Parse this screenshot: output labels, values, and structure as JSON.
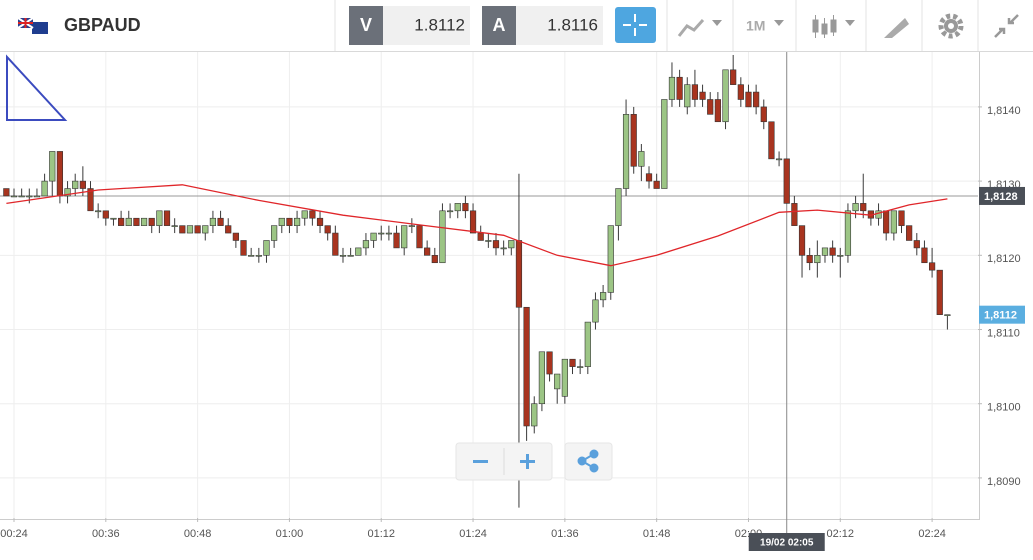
{
  "header": {
    "symbol": "GBPAUD",
    "bid_label": "V",
    "bid": "1.8112",
    "ask_label": "A",
    "ask": "1.8116",
    "timeframe": "1M"
  },
  "chart_data": {
    "type": "candlestick",
    "x": [
      23,
      24,
      25,
      26,
      27,
      28,
      29,
      30,
      31,
      32,
      33,
      34,
      35,
      36,
      37,
      38,
      39,
      40,
      41,
      42,
      43,
      44,
      45,
      46,
      47,
      48,
      49,
      50,
      51,
      52,
      53,
      54,
      55,
      56,
      57,
      58,
      59,
      60,
      61,
      62,
      63,
      64,
      65,
      66,
      67,
      68,
      69,
      70,
      71,
      72,
      73,
      74,
      75,
      76,
      77,
      78,
      79,
      80,
      81,
      82,
      83,
      84,
      85,
      86,
      87,
      88,
      89,
      90,
      91,
      92,
      93,
      94,
      95,
      96,
      97,
      98,
      99,
      100,
      101,
      102,
      103,
      104,
      105,
      106,
      107,
      108,
      109,
      110,
      111,
      112,
      113,
      114,
      115,
      116,
      117,
      118,
      119,
      120,
      121,
      122,
      123,
      124,
      125,
      126,
      127,
      128,
      129,
      130,
      131,
      132,
      133,
      134,
      135,
      136,
      137,
      138,
      139,
      140,
      141,
      142,
      143,
      144,
      145,
      146
    ],
    "candles": [
      [
        1.8129,
        1.8129,
        1.8128,
        1.8128
      ],
      [
        1.8128,
        1.8129,
        1.8128,
        1.8128
      ],
      [
        1.8128,
        1.8129,
        1.8128,
        1.8128
      ],
      [
        1.8128,
        1.8129,
        1.8127,
        1.8128
      ],
      [
        1.8128,
        1.8129,
        1.8128,
        1.8128
      ],
      [
        1.8128,
        1.8131,
        1.8128,
        1.813
      ],
      [
        1.813,
        1.8134,
        1.8128,
        1.8134
      ],
      [
        1.8134,
        1.8134,
        1.8127,
        1.8128
      ],
      [
        1.8128,
        1.813,
        1.8127,
        1.8129
      ],
      [
        1.8129,
        1.8131,
        1.8128,
        1.813
      ],
      [
        1.813,
        1.8132,
        1.8128,
        1.8129
      ],
      [
        1.8129,
        1.813,
        1.8126,
        1.8126
      ],
      [
        1.8126,
        1.8127,
        1.8125,
        1.8126
      ],
      [
        1.8126,
        1.8126,
        1.8124,
        1.8125
      ],
      [
        1.8125,
        1.8125,
        1.8124,
        1.8125
      ],
      [
        1.8125,
        1.8126,
        1.8124,
        1.8124
      ],
      [
        1.8124,
        1.8126,
        1.8124,
        1.8125
      ],
      [
        1.8125,
        1.8125,
        1.8124,
        1.8124
      ],
      [
        1.8124,
        1.8125,
        1.8124,
        1.8125
      ],
      [
        1.8125,
        1.8125,
        1.8123,
        1.8124
      ],
      [
        1.8124,
        1.8126,
        1.8123,
        1.8126
      ],
      [
        1.8126,
        1.8126,
        1.8124,
        1.8124
      ],
      [
        1.8124,
        1.8125,
        1.8123,
        1.8124
      ],
      [
        1.8124,
        1.8124,
        1.8123,
        1.8123
      ],
      [
        1.8123,
        1.8124,
        1.8123,
        1.8124
      ],
      [
        1.8124,
        1.8124,
        1.8123,
        1.8123
      ],
      [
        1.8123,
        1.8124,
        1.8122,
        1.8124
      ],
      [
        1.8124,
        1.8126,
        1.8123,
        1.8125
      ],
      [
        1.8125,
        1.8126,
        1.8124,
        1.8124
      ],
      [
        1.8124,
        1.8125,
        1.8123,
        1.8123
      ],
      [
        1.8123,
        1.8123,
        1.8121,
        1.8122
      ],
      [
        1.8122,
        1.8122,
        1.812,
        1.812
      ],
      [
        1.812,
        1.8121,
        1.812,
        1.812
      ],
      [
        1.812,
        1.8121,
        1.8119,
        1.812
      ],
      [
        1.812,
        1.8122,
        1.8119,
        1.8122
      ],
      [
        1.8122,
        1.8124,
        1.8121,
        1.8124
      ],
      [
        1.8124,
        1.8125,
        1.8123,
        1.8125
      ],
      [
        1.8125,
        1.8125,
        1.8123,
        1.8124
      ],
      [
        1.8124,
        1.8126,
        1.8123,
        1.8125
      ],
      [
        1.8125,
        1.8126,
        1.8124,
        1.8126
      ],
      [
        1.8126,
        1.8126,
        1.8124,
        1.8125
      ],
      [
        1.8125,
        1.8126,
        1.8123,
        1.8124
      ],
      [
        1.8124,
        1.8124,
        1.8122,
        1.8123
      ],
      [
        1.8123,
        1.8124,
        1.812,
        1.812
      ],
      [
        1.812,
        1.8121,
        1.8119,
        1.812
      ],
      [
        1.812,
        1.8121,
        1.812,
        1.812
      ],
      [
        1.812,
        1.8121,
        1.812,
        1.8121
      ],
      [
        1.8121,
        1.8123,
        1.812,
        1.8122
      ],
      [
        1.8122,
        1.8123,
        1.8121,
        1.8123
      ],
      [
        1.8123,
        1.8124,
        1.8122,
        1.8123
      ],
      [
        1.8123,
        1.8124,
        1.8122,
        1.8123
      ],
      [
        1.8123,
        1.8124,
        1.8121,
        1.8121
      ],
      [
        1.8121,
        1.8124,
        1.812,
        1.8124
      ],
      [
        1.8124,
        1.8125,
        1.8123,
        1.8124
      ],
      [
        1.8124,
        1.8124,
        1.8121,
        1.8121
      ],
      [
        1.8121,
        1.8122,
        1.812,
        1.812
      ],
      [
        1.812,
        1.8121,
        1.8119,
        1.8119
      ],
      [
        1.8119,
        1.8127,
        1.8119,
        1.8126
      ],
      [
        1.8126,
        1.8127,
        1.8125,
        1.8126
      ],
      [
        1.8126,
        1.8127,
        1.8125,
        1.8127
      ],
      [
        1.8127,
        1.8128,
        1.8125,
        1.8126
      ],
      [
        1.8126,
        1.8127,
        1.8123,
        1.8123
      ],
      [
        1.8123,
        1.8124,
        1.8122,
        1.8122
      ],
      [
        1.8122,
        1.8123,
        1.8121,
        1.8122
      ],
      [
        1.8122,
        1.8123,
        1.812,
        1.8121
      ],
      [
        1.8121,
        1.8122,
        1.812,
        1.8121
      ],
      [
        1.8121,
        1.8122,
        1.812,
        1.8122
      ],
      [
        1.8122,
        1.8131,
        1.8086,
        1.8113
      ],
      [
        1.8113,
        1.8113,
        1.8095,
        1.8097
      ],
      [
        1.8097,
        1.8101,
        1.8096,
        1.81
      ],
      [
        1.81,
        1.8107,
        1.8099,
        1.8107
      ],
      [
        1.8107,
        1.8107,
        1.8103,
        1.8104
      ],
      [
        1.8102,
        1.8104,
        1.81,
        1.8104
      ],
      [
        1.8101,
        1.8106,
        1.81,
        1.8106
      ],
      [
        1.8106,
        1.8106,
        1.8104,
        1.8105
      ],
      [
        1.8105,
        1.8106,
        1.8104,
        1.8105
      ],
      [
        1.8105,
        1.8111,
        1.8104,
        1.8111
      ],
      [
        1.8111,
        1.8115,
        1.811,
        1.8114
      ],
      [
        1.8114,
        1.8116,
        1.8113,
        1.8115
      ],
      [
        1.8115,
        1.8124,
        1.8114,
        1.8124
      ],
      [
        1.8124,
        1.8129,
        1.8122,
        1.8129
      ],
      [
        1.8129,
        1.8141,
        1.8128,
        1.8139
      ],
      [
        1.8139,
        1.814,
        1.8131,
        1.8132
      ],
      [
        1.8132,
        1.8135,
        1.813,
        1.8134
      ],
      [
        1.8131,
        1.8132,
        1.8129,
        1.813
      ],
      [
        1.813,
        1.8131,
        1.8129,
        1.8129
      ],
      [
        1.8129,
        1.8141,
        1.8129,
        1.8141
      ],
      [
        1.8141,
        1.8146,
        1.814,
        1.8144
      ],
      [
        1.8144,
        1.8145,
        1.814,
        1.8141
      ],
      [
        1.814,
        1.8144,
        1.8139,
        1.8143
      ],
      [
        1.8143,
        1.8145,
        1.814,
        1.8141
      ],
      [
        1.8142,
        1.8143,
        1.814,
        1.8141
      ],
      [
        1.8141,
        1.8142,
        1.8139,
        1.8139
      ],
      [
        1.8141,
        1.8142,
        1.8138,
        1.8138
      ],
      [
        1.8138,
        1.8145,
        1.8137,
        1.8145
      ],
      [
        1.8145,
        1.8147,
        1.8143,
        1.8143
      ],
      [
        1.8143,
        1.8144,
        1.814,
        1.8141
      ],
      [
        1.8142,
        1.8143,
        1.814,
        1.814
      ],
      [
        1.8142,
        1.8143,
        1.8139,
        1.814
      ],
      [
        1.814,
        1.8141,
        1.8137,
        1.8138
      ],
      [
        1.8138,
        1.8138,
        1.8133,
        1.8133
      ],
      [
        1.8133,
        1.8134,
        1.8132,
        1.8133
      ],
      [
        1.8133,
        1.8133,
        1.8127,
        1.8127
      ],
      [
        1.8127,
        1.8128,
        1.8124,
        1.8124
      ],
      [
        1.8124,
        1.8124,
        1.8117,
        1.812
      ],
      [
        1.812,
        1.8121,
        1.8118,
        1.8119
      ],
      [
        1.8119,
        1.8122,
        1.8117,
        1.812
      ],
      [
        1.812,
        1.8121,
        1.8119,
        1.8121
      ],
      [
        1.8121,
        1.8122,
        1.8119,
        1.812
      ],
      [
        1.812,
        1.8121,
        1.8117,
        1.812
      ],
      [
        1.812,
        1.8127,
        1.8119,
        1.8126
      ],
      [
        1.8126,
        1.8128,
        1.8125,
        1.8127
      ],
      [
        1.8127,
        1.8131,
        1.8125,
        1.8126
      ],
      [
        1.8126,
        1.8126,
        1.8124,
        1.8125
      ],
      [
        1.8125,
        1.8127,
        1.8124,
        1.8126
      ],
      [
        1.8126,
        1.8126,
        1.8122,
        1.8123
      ],
      [
        1.8123,
        1.8126,
        1.8122,
        1.8126
      ],
      [
        1.8126,
        1.8126,
        1.8123,
        1.8124
      ],
      [
        1.8124,
        1.8124,
        1.8122,
        1.8122
      ],
      [
        1.8122,
        1.8123,
        1.812,
        1.8121
      ],
      [
        1.8121,
        1.8122,
        1.8119,
        1.8119
      ],
      [
        1.8119,
        1.8121,
        1.8117,
        1.8118
      ],
      [
        1.8118,
        1.8118,
        1.8112,
        1.8112
      ],
      [
        1.8112,
        1.8112,
        1.811,
        1.8112
      ]
    ],
    "up_color": "#9cc585",
    "down_color": "#a8341f",
    "average": {
      "color": "#e0262a",
      "x": [
        23,
        35,
        46,
        56,
        67,
        77,
        88,
        95,
        102,
        108,
        116,
        124,
        129,
        136,
        141,
        146
      ],
      "values": [
        1.8127,
        1.81288,
        1.81295,
        1.81274,
        1.81254,
        1.81241,
        1.81227,
        1.812,
        1.81186,
        1.812,
        1.81226,
        1.81258,
        1.81261,
        1.81254,
        1.81268,
        1.81276
      ]
    },
    "xlim": [
      22.17,
      150.0
    ],
    "ylim": [
      1.80846,
      1.81474
    ],
    "xticks": [
      {
        "value": 24,
        "label": "00:24"
      },
      {
        "value": 36,
        "label": "00:36"
      },
      {
        "value": 48,
        "label": "00:48"
      },
      {
        "value": 60,
        "label": "01:00"
      },
      {
        "value": 72,
        "label": "01:12"
      },
      {
        "value": 84,
        "label": "01:24"
      },
      {
        "value": 96,
        "label": "01:36"
      },
      {
        "value": 108,
        "label": "01:48"
      },
      {
        "value": 120,
        "label": "02:00"
      },
      {
        "value": 132,
        "label": "02:12"
      },
      {
        "value": 144,
        "label": "02:24"
      }
    ],
    "yticks": [
      {
        "value": 1.809,
        "label": "1,8090"
      },
      {
        "value": 1.81,
        "label": "1,8100"
      },
      {
        "value": 1.811,
        "label": "1,8110"
      },
      {
        "value": 1.812,
        "label": "1,8120"
      },
      {
        "value": 1.813,
        "label": "1,8130"
      },
      {
        "value": 1.814,
        "label": "1,8140"
      }
    ],
    "grid": true,
    "crosshair": {
      "x": {
        "value": 125,
        "label": "19/02 02:05"
      },
      "y": {
        "value": 1.8128,
        "label": "1,8128"
      }
    },
    "last_price": {
      "value": 1.8112,
      "label": "1,8112",
      "color": "#5aaee0"
    }
  }
}
